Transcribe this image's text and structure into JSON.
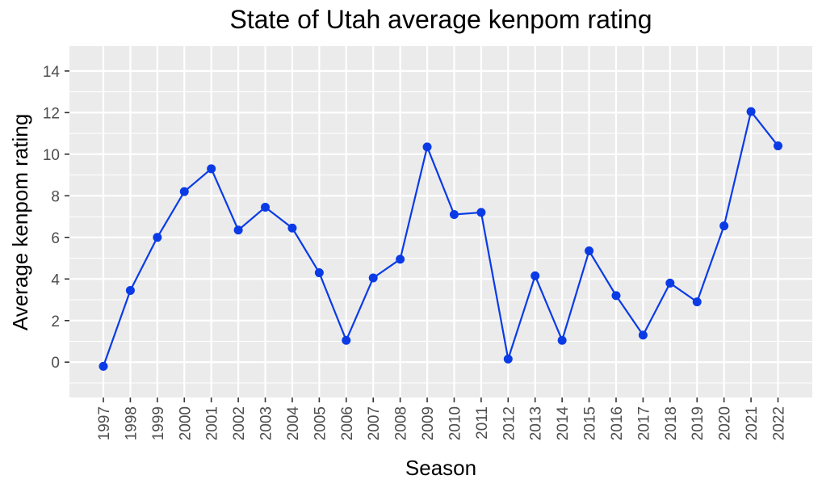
{
  "chart_data": {
    "type": "line",
    "title": "State of Utah average kenpom rating",
    "xlabel": "Season",
    "ylabel": "Average kenpom rating",
    "x": [
      "1997",
      "1998",
      "1999",
      "2000",
      "2001",
      "2002",
      "2003",
      "2004",
      "2005",
      "2006",
      "2007",
      "2008",
      "2009",
      "2010",
      "2011",
      "2012",
      "2013",
      "2014",
      "2015",
      "2016",
      "2017",
      "2018",
      "2019",
      "2020",
      "2021",
      "2022"
    ],
    "series": [
      {
        "values": [
          -0.2,
          3.45,
          6.0,
          8.2,
          9.3,
          6.35,
          7.45,
          6.45,
          4.3,
          1.05,
          4.05,
          4.95,
          10.35,
          7.1,
          7.2,
          0.15,
          4.15,
          1.05,
          5.35,
          3.2,
          1.3,
          3.8,
          2.9,
          6.55,
          12.05,
          10.4
        ],
        "color": "#0a3be6"
      }
    ],
    "ylim": [
      -1.7,
      15.2
    ],
    "yticks": [
      0,
      2,
      4,
      6,
      8,
      10,
      12,
      14
    ],
    "grid": true,
    "panel_color": "#ebebeb",
    "grid_color": "#ffffff"
  }
}
